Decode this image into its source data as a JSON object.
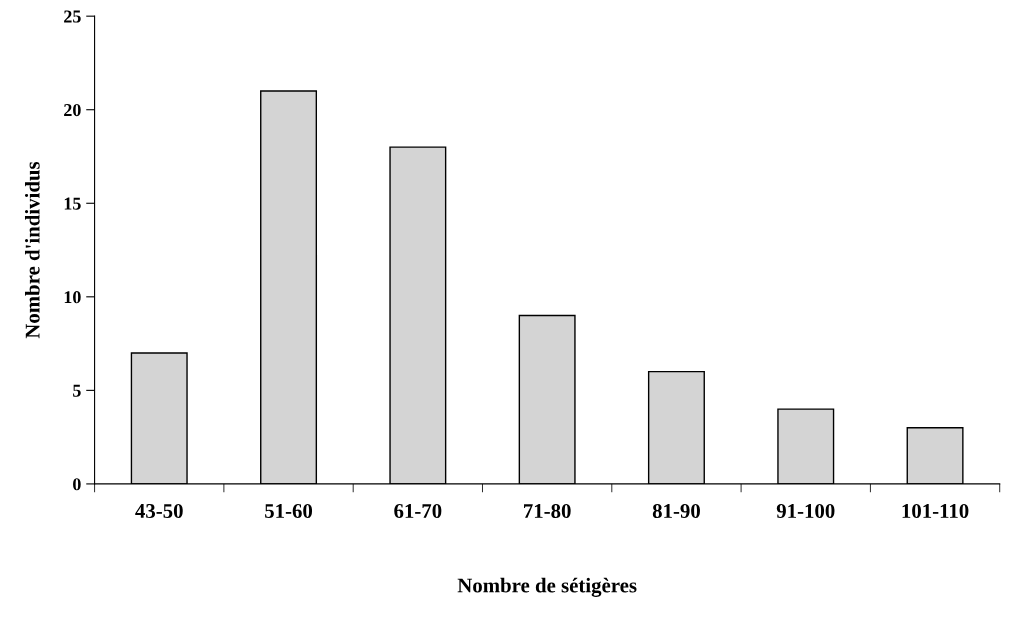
{
  "chart_data": {
    "type": "bar",
    "xlabel": "Nombre de sétigères",
    "ylabel": "Nombre d'individus",
    "categories": [
      "43-50",
      "51-60",
      "61-70",
      "71-80",
      "81-90",
      "91-100",
      "101-110"
    ],
    "values": [
      7,
      21,
      18,
      9,
      6,
      4,
      3
    ],
    "color": "#d4d4d4",
    "ylim": [
      0,
      25
    ],
    "yticks": [
      0,
      5,
      10,
      15,
      20,
      25
    ],
    "grid": false,
    "legend": false
  }
}
